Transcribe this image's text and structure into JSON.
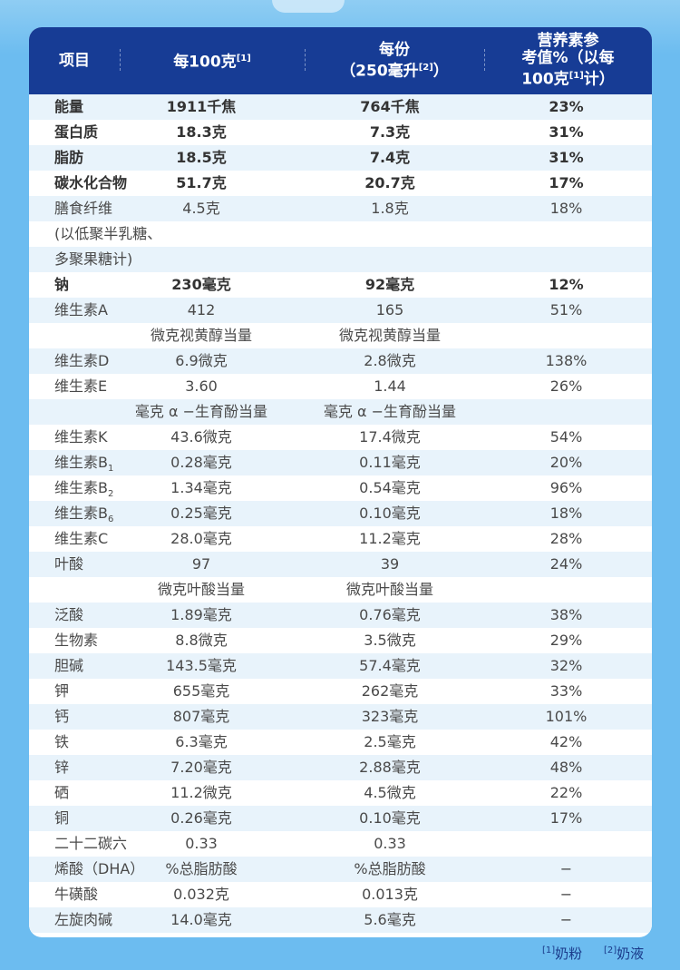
{
  "header": {
    "col0": "项目",
    "col1": "每100克",
    "col1_sup": "[1]",
    "col2_line1": "每份",
    "col2_line2a": "（250毫升",
    "col2_sup": "[2]",
    "col2_line2b": "）",
    "col3_line1": "营养素参",
    "col3_line2": "考值%（以每",
    "col3_line3a": "100克",
    "col3_sup": "[1]",
    "col3_line3b": "计）"
  },
  "rows": [
    {
      "name": "能量",
      "per100": "1911千焦",
      "perServing": "764千焦",
      "nrv": "23%"
    },
    {
      "name": "蛋白质",
      "per100": "18.3克",
      "perServing": "7.3克",
      "nrv": "31%"
    },
    {
      "name": "脂肪",
      "per100": "18.5克",
      "perServing": "7.4克",
      "nrv": "31%"
    },
    {
      "name": "碳水化合物",
      "per100": "51.7克",
      "perServing": "20.7克",
      "nrv": "17%"
    },
    {
      "name": "膳食纤维",
      "per100": "4.5克",
      "perServing": "1.8克",
      "nrv": "18%"
    },
    {
      "name": "(以低聚半乳糖、",
      "per100": "",
      "perServing": "",
      "nrv": ""
    },
    {
      "name": "多聚果糖计)",
      "per100": "",
      "perServing": "",
      "nrv": ""
    },
    {
      "name": "钠",
      "per100": "230毫克",
      "perServing": "92毫克",
      "nrv": "12%"
    },
    {
      "name": "维生素A",
      "per100": "412",
      "perServing": "165",
      "nrv": "51%"
    },
    {
      "name": "",
      "per100": "微克视黄醇当量",
      "perServing": "微克视黄醇当量",
      "nrv": ""
    },
    {
      "name": "维生素D",
      "per100": "6.9微克",
      "perServing": "2.8微克",
      "nrv": "138%"
    },
    {
      "name": "维生素E",
      "per100": "3.60",
      "perServing": "1.44",
      "nrv": "26%"
    },
    {
      "name": "",
      "per100": "毫克 α −生育酚当量",
      "perServing": "毫克 α −生育酚当量",
      "nrv": ""
    },
    {
      "name": "维生素K",
      "per100": "43.6微克",
      "perServing": "17.4微克",
      "nrv": "54%"
    },
    {
      "name": "维生素B",
      "sub": "1",
      "per100": "0.28毫克",
      "perServing": "0.11毫克",
      "nrv": "20%"
    },
    {
      "name": "维生素B",
      "sub": "2",
      "per100": "1.34毫克",
      "perServing": "0.54毫克",
      "nrv": "96%"
    },
    {
      "name": "维生素B",
      "sub": "6",
      "per100": "0.25毫克",
      "perServing": "0.10毫克",
      "nrv": "18%"
    },
    {
      "name": "维生素C",
      "per100": "28.0毫克",
      "perServing": "11.2毫克",
      "nrv": "28%"
    },
    {
      "name": "叶酸",
      "per100": "97",
      "perServing": "39",
      "nrv": "24%"
    },
    {
      "name": "",
      "per100": "微克叶酸当量",
      "perServing": "微克叶酸当量",
      "nrv": ""
    },
    {
      "name": "泛酸",
      "per100": "1.89毫克",
      "perServing": "0.76毫克",
      "nrv": "38%"
    },
    {
      "name": "生物素",
      "per100": "8.8微克",
      "perServing": "3.5微克",
      "nrv": "29%"
    },
    {
      "name": "胆碱",
      "per100": "143.5毫克",
      "perServing": "57.4毫克",
      "nrv": "32%"
    },
    {
      "name": "钾",
      "per100": "655毫克",
      "perServing": "262毫克",
      "nrv": "33%"
    },
    {
      "name": "钙",
      "per100": "807毫克",
      "perServing": "323毫克",
      "nrv": "101%"
    },
    {
      "name": "铁",
      "per100": "6.3毫克",
      "perServing": "2.5毫克",
      "nrv": "42%"
    },
    {
      "name": "锌",
      "per100": "7.20毫克",
      "perServing": "2.88毫克",
      "nrv": "48%"
    },
    {
      "name": "硒",
      "per100": "11.2微克",
      "perServing": "4.5微克",
      "nrv": "22%"
    },
    {
      "name": "铜",
      "per100": "0.26毫克",
      "perServing": "0.10毫克",
      "nrv": "17%"
    },
    {
      "name": "二十二碳六",
      "per100": "0.33",
      "perServing": "0.33",
      "nrv": ""
    },
    {
      "name": "烯酸（DHA）",
      "per100": "%总脂肪酸",
      "perServing": "%总脂肪酸",
      "nrv": "−"
    },
    {
      "name": "牛磺酸",
      "per100": "0.032克",
      "perServing": "0.013克",
      "nrv": "−"
    },
    {
      "name": "左旋肉碱",
      "per100": "14.0毫克",
      "perServing": "5.6毫克",
      "nrv": "−"
    }
  ],
  "footnotes": {
    "note1_mark": "[1]",
    "note1_text": "奶粉",
    "note2_mark": "[2]",
    "note2_text": "奶液"
  },
  "colors": {
    "header_bg": "#173c95",
    "stripe": "#e8f3fb",
    "page_bg": "#6cbcf0"
  }
}
